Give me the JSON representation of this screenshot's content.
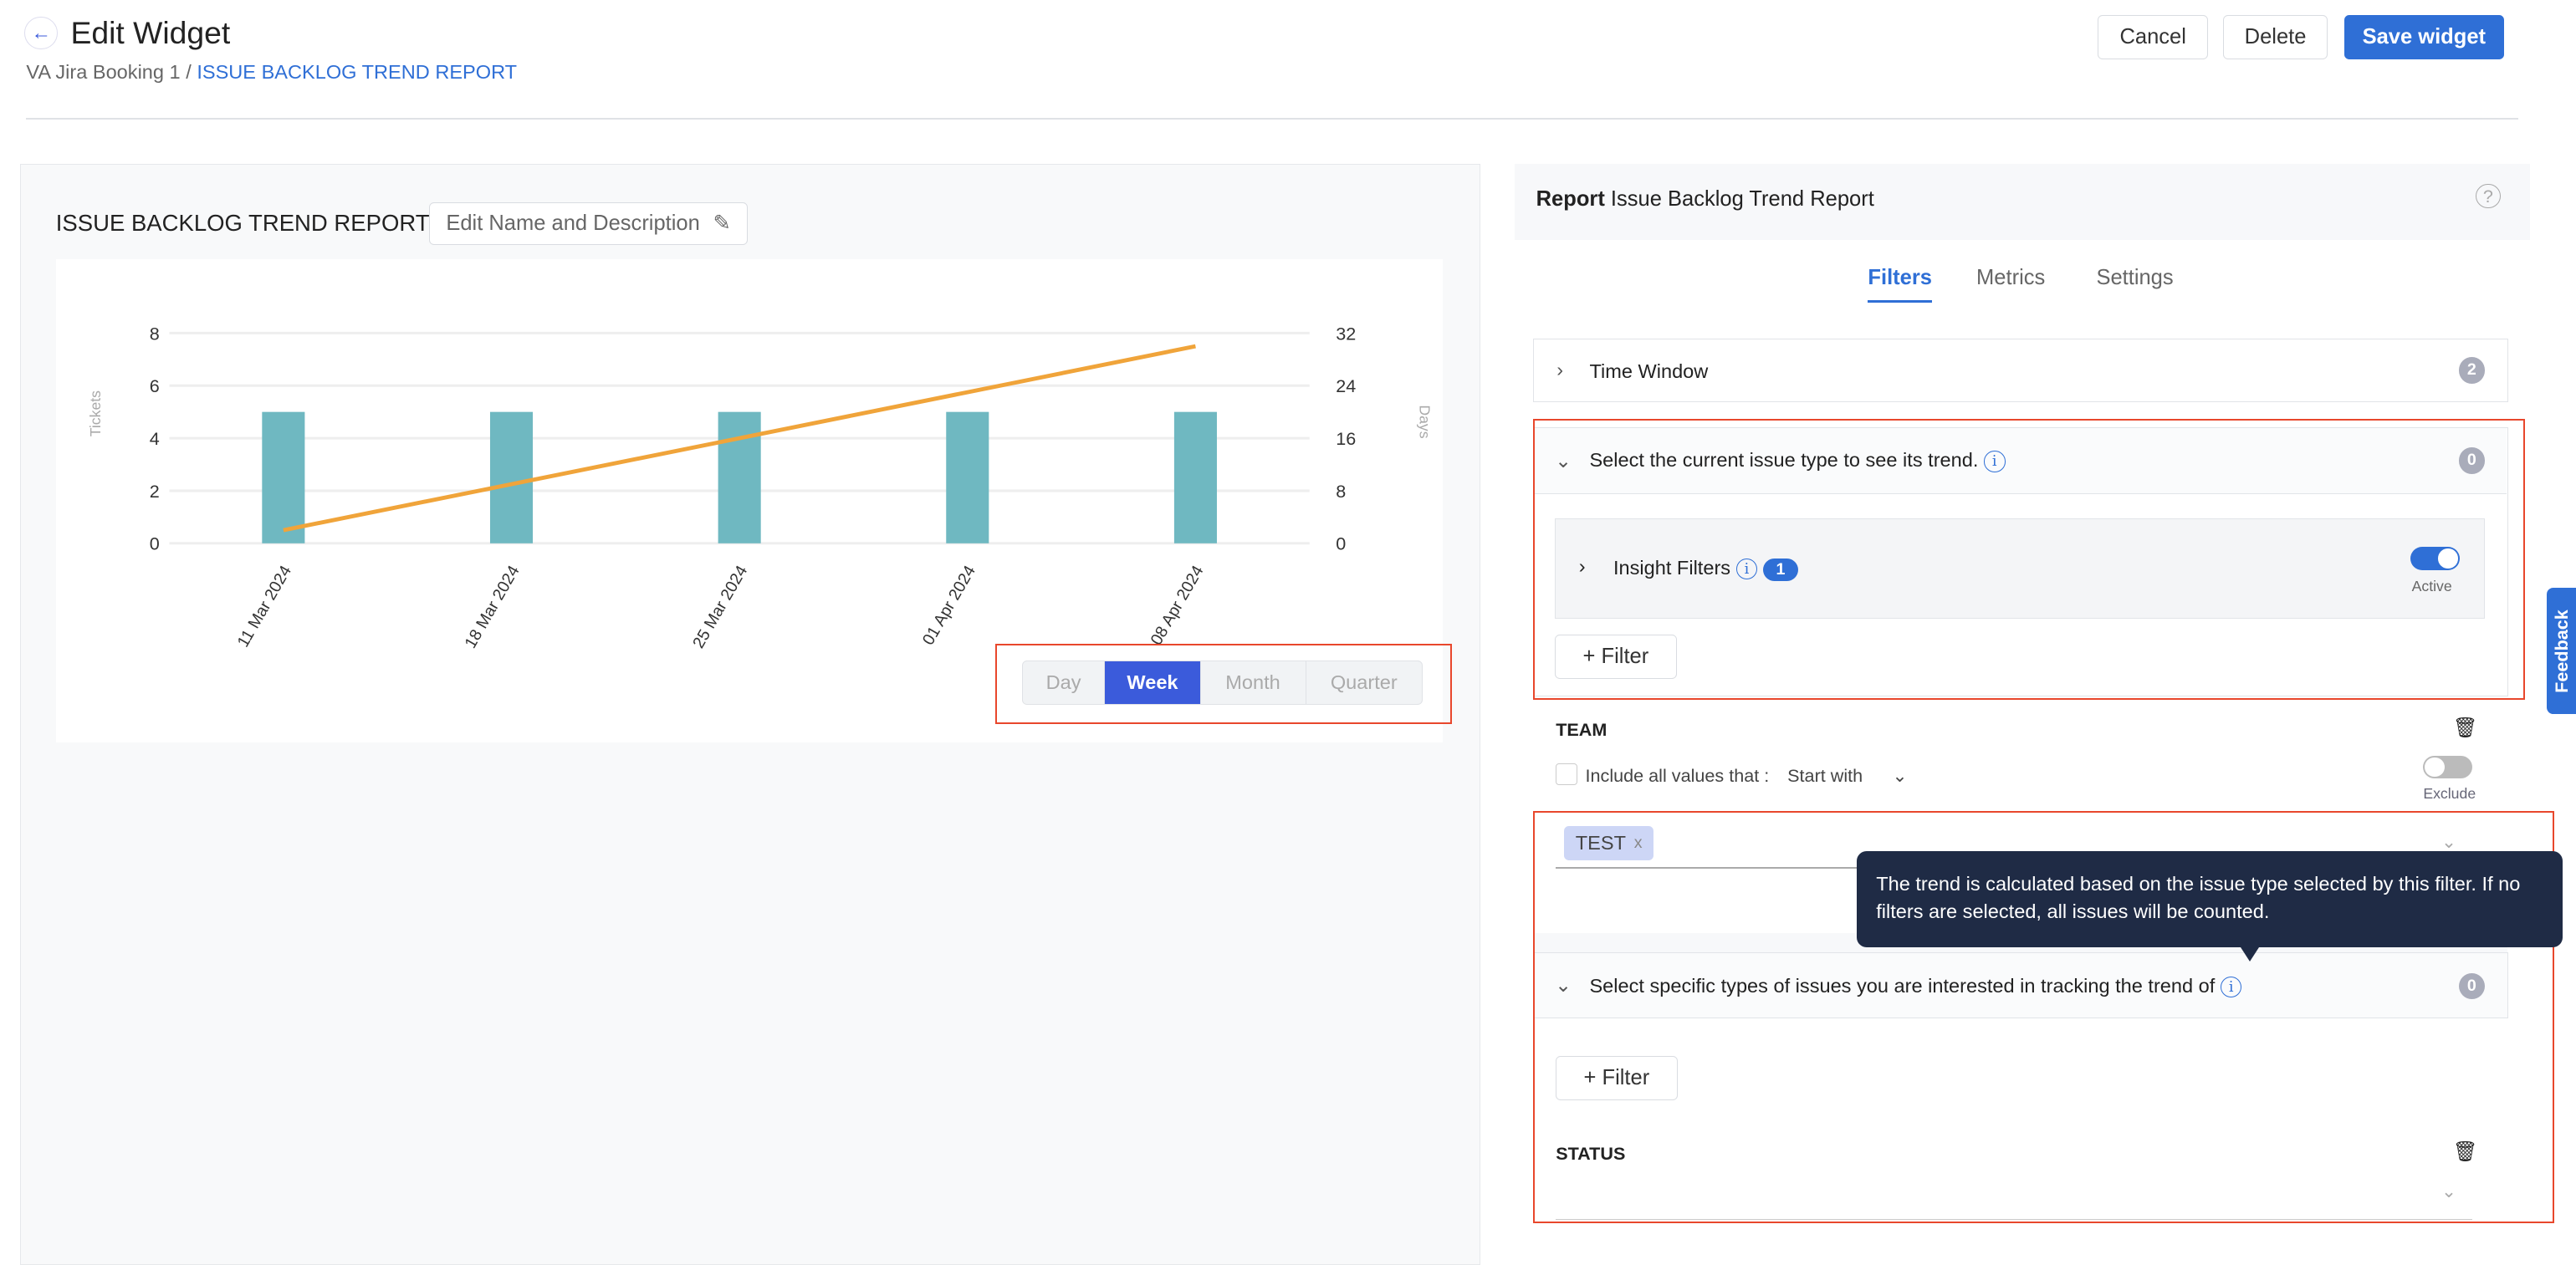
{
  "header": {
    "title": "Edit Widget",
    "breadcrumb_parent": "VA Jira Booking 1",
    "breadcrumb_sep": " / ",
    "breadcrumb_current": "ISSUE BACKLOG TREND REPORT",
    "cancel": "Cancel",
    "delete": "Delete",
    "save": "Save widget"
  },
  "preview": {
    "title": "ISSUE BACKLOG TREND REPORT",
    "edit_name": "Edit Name and Description",
    "intervals": [
      "Day",
      "Week",
      "Month",
      "Quarter"
    ],
    "selected_interval": "Week"
  },
  "chart_data": {
    "type": "bar+line",
    "categories": [
      "11 Mar 2024",
      "18 Mar 2024",
      "25 Mar 2024",
      "01 Apr 2024",
      "08 Apr 2024"
    ],
    "series": [
      {
        "type": "bar",
        "axis": "left",
        "values": [
          5,
          5,
          5,
          5,
          5
        ],
        "color": "#6fb8c1"
      },
      {
        "type": "line",
        "axis": "right",
        "values": [
          2,
          9,
          16,
          23,
          30
        ],
        "color": "#f0a43a"
      }
    ],
    "ylabel": "Tickets",
    "y2label": "Days",
    "ylim": [
      0,
      8
    ],
    "y2lim": [
      0,
      32
    ],
    "yticks": [
      "0",
      "2",
      "4",
      "6",
      "8"
    ],
    "y2ticks": [
      "0",
      "8",
      "16",
      "24",
      "32"
    ],
    "grid": true
  },
  "panel": {
    "report_label": "Report",
    "report_name": "Issue Backlog Trend Report",
    "tabs": [
      "Filters",
      "Metrics",
      "Settings"
    ],
    "active_tab": "Filters",
    "time_window": {
      "label": "Time Window",
      "count": "2"
    },
    "issue_type_section": {
      "label": "Select the current issue type to see its trend.",
      "count": "0",
      "insight_filters": "Insight Filters",
      "insight_count": "1",
      "active_label": "Active",
      "add_filter": "+ Filter"
    },
    "team": {
      "label": "TEAM",
      "include_label": "Include all values that :",
      "match": "Start with",
      "exclude_label": "Exclude",
      "chip": "TEST"
    },
    "tooltip": "The trend is calculated based on the issue type selected by this filter. If no filters are selected, all issues will be counted.",
    "specific_section": {
      "label": "Select specific types of issues you are interested in tracking the trend of",
      "count": "0",
      "add_filter": "+ Filter"
    },
    "status": {
      "label": "STATUS"
    }
  },
  "feedback": "Feedback",
  "colors": {
    "accent": "#2f6fd6",
    "week": "#3b5bdb",
    "tooltip": "#1f2b45",
    "highlight": "#e8472c"
  }
}
